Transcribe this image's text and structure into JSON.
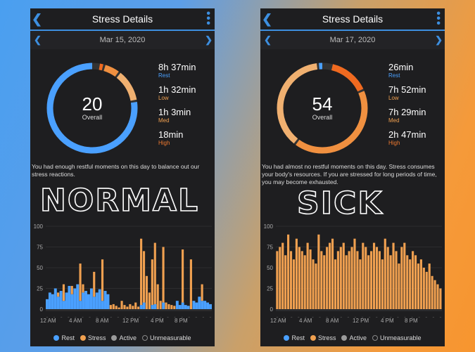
{
  "colors": {
    "rest": "#4aa0ff",
    "stress": "#f0a050",
    "active": "#9a9a9a",
    "accent": "#3d8fe0"
  },
  "left": {
    "title": "Stress Details",
    "date": "Mar 15, 2020",
    "score": "20",
    "score_label": "Overall",
    "stats": [
      {
        "value": "8h 37min",
        "label": "Rest"
      },
      {
        "value": "1h 32min",
        "label": "Low"
      },
      {
        "value": "1h 3min",
        "label": "Med"
      },
      {
        "value": "18min",
        "label": "High"
      }
    ],
    "message": "You had enough restful moments on this day to balance out our stress reactions.",
    "overlay": "NORMAL",
    "ring": {
      "rest": 0.78,
      "low": 0.12,
      "med": 0.06,
      "high": 0.02
    },
    "y_ticks": [
      "100",
      "75",
      "50",
      "25",
      "0"
    ],
    "times": [
      "12 AM",
      "4 AM",
      "8 AM",
      "12 PM",
      "4 PM",
      "8 PM"
    ],
    "stress_series": [
      5,
      12,
      8,
      6,
      20,
      10,
      30,
      8,
      15,
      28,
      12,
      20,
      55,
      30,
      8,
      10,
      6,
      45,
      20,
      12,
      60,
      8,
      10,
      5,
      6,
      4,
      2,
      10,
      5,
      3,
      6,
      4,
      8,
      3,
      85,
      70,
      40,
      20,
      60,
      80,
      30,
      10,
      75,
      8,
      6,
      5,
      4,
      10,
      5,
      72,
      5,
      4,
      60,
      10,
      8,
      15,
      30,
      10,
      8,
      6
    ],
    "rest_series": [
      12,
      20,
      18,
      25,
      15,
      22,
      10,
      20,
      28,
      18,
      25,
      30,
      10,
      20,
      22,
      18,
      25,
      15,
      20,
      24,
      10,
      22,
      18,
      0,
      0,
      0,
      0,
      0,
      0,
      0,
      0,
      0,
      0,
      0,
      5,
      8,
      0,
      0,
      5,
      6,
      0,
      0,
      8,
      0,
      0,
      0,
      0,
      10,
      5,
      8,
      5,
      4,
      0,
      10,
      8,
      15,
      10,
      10,
      8,
      6
    ]
  },
  "right": {
    "title": "Stress Details",
    "date": "Mar 17, 2020",
    "score": "54",
    "score_label": "Overall",
    "stats": [
      {
        "value": "26min",
        "label": "Rest"
      },
      {
        "value": "7h 52min",
        "label": "Low"
      },
      {
        "value": "7h 29min",
        "label": "Med"
      },
      {
        "value": "2h 47min",
        "label": "High"
      }
    ],
    "message": "You had almost no restful moments on this day. Stress consumes your body's resources. If you are stressed for long periods of time, you may become exhausted.",
    "overlay": "SICK",
    "ring": {
      "rest": 0.02,
      "low": 0.38,
      "med": 0.42,
      "high": 0.15
    },
    "y_ticks": [
      "100",
      "75",
      "50",
      "25",
      "0"
    ],
    "times": [
      "12 AM",
      "4 AM",
      "8 AM",
      "12 PM",
      "4 PM",
      "8 PM"
    ],
    "stress_series": [
      70,
      75,
      80,
      65,
      90,
      70,
      60,
      85,
      75,
      70,
      65,
      80,
      72,
      60,
      55,
      90,
      70,
      65,
      75,
      80,
      85,
      60,
      70,
      75,
      80,
      65,
      70,
      75,
      85,
      70,
      60,
      80,
      75,
      65,
      70,
      80,
      75,
      70,
      60,
      85,
      75,
      65,
      80,
      70,
      55,
      75,
      80,
      65,
      60,
      70,
      65,
      55,
      60,
      50,
      45,
      55,
      40,
      35,
      30,
      25
    ],
    "rest_series": []
  },
  "legend": [
    "Rest",
    "Stress",
    "Active",
    "Unmeasurable"
  ]
}
